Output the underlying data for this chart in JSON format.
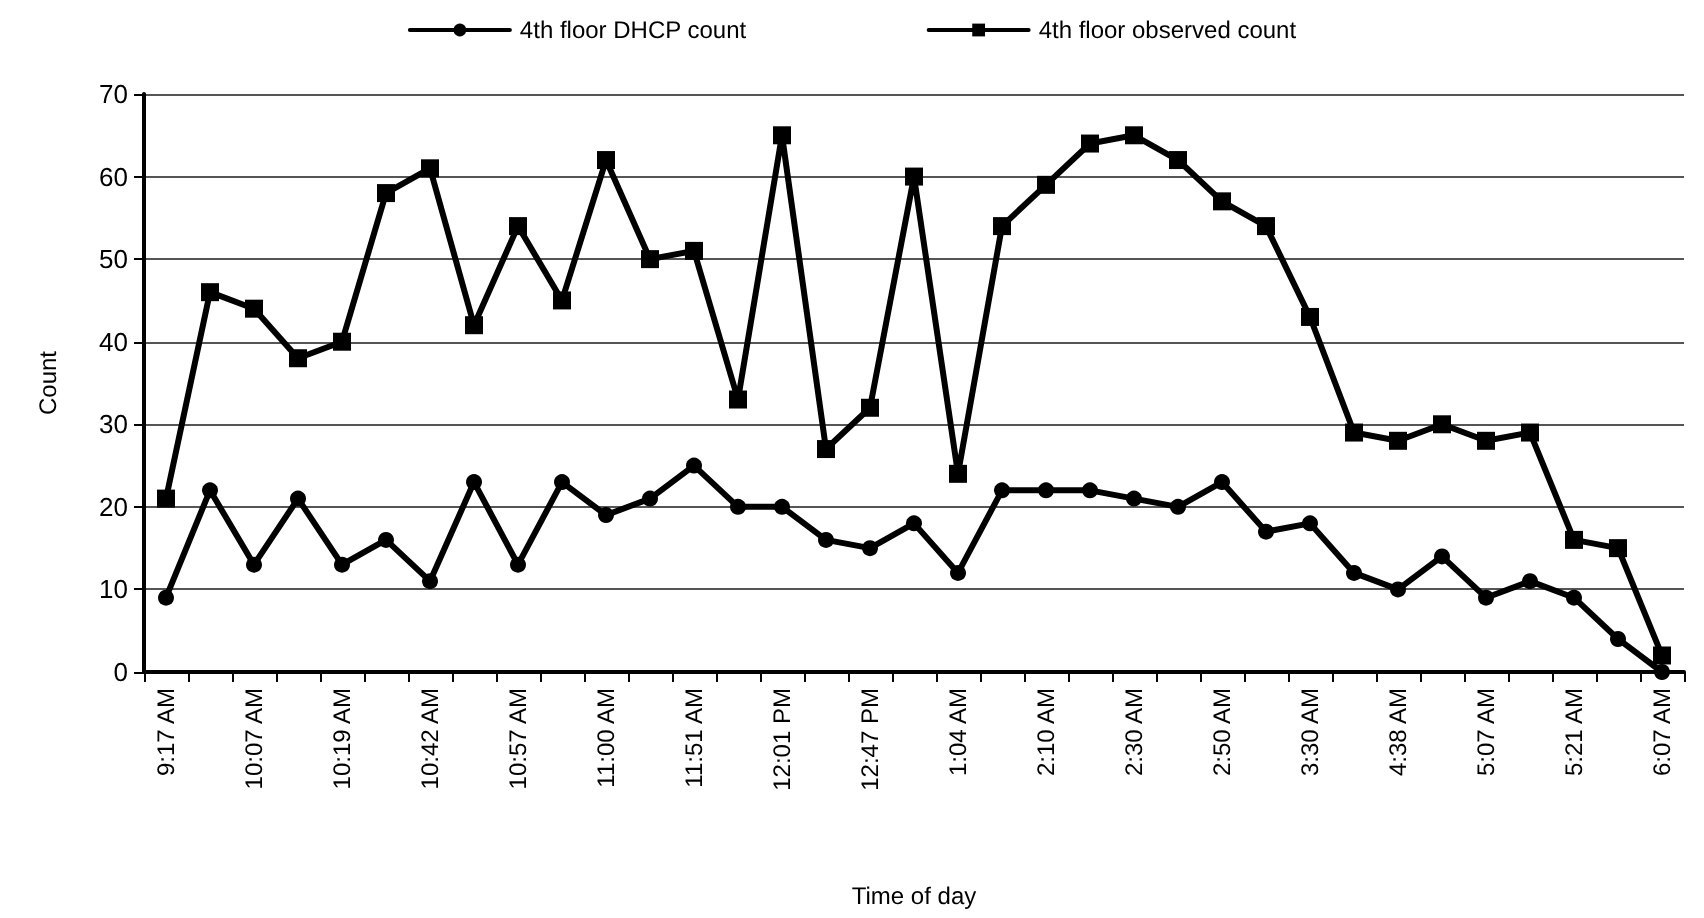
{
  "chart_data": {
    "type": "line",
    "xlabel": "Time of day",
    "ylabel": "Count",
    "categories": [
      "9:17 AM",
      null,
      "10:07 AM",
      null,
      "10:19 AM",
      null,
      "10:42 AM",
      null,
      "10:57 AM",
      null,
      "11:00 AM",
      null,
      "11:51 AM",
      null,
      "12:01 PM",
      null,
      "12:47 PM",
      null,
      "1:04 AM",
      null,
      "2:10 AM",
      null,
      "2:30 AM",
      null,
      "2:50 AM",
      null,
      "3:30 AM",
      null,
      "4:38 AM",
      null,
      "5:07 AM",
      null,
      "5:21 AM",
      null,
      "6:07 AM"
    ],
    "series": [
      {
        "name": "4th floor DHCP count",
        "color": "#000000",
        "marker": "circle",
        "values": [
          9,
          22,
          13,
          21,
          13,
          16,
          11,
          23,
          13,
          23,
          19,
          21,
          25,
          20,
          20,
          16,
          15,
          18,
          12,
          22,
          22,
          22,
          21,
          20,
          23,
          17,
          18,
          12,
          10,
          14,
          9,
          11,
          9,
          4,
          0
        ]
      },
      {
        "name": "4th floor observed count",
        "color": "#000000",
        "marker": "square",
        "values": [
          21,
          46,
          44,
          38,
          40,
          58,
          61,
          42,
          54,
          45,
          62,
          50,
          51,
          33,
          65,
          27,
          32,
          60,
          24,
          54,
          59,
          64,
          65,
          62,
          57,
          54,
          43,
          29,
          28,
          30,
          28,
          29,
          16,
          15,
          2
        ]
      }
    ],
    "ylim": [
      0,
      70
    ],
    "yticks": [
      0,
      10,
      20,
      30,
      40,
      50,
      60,
      70
    ],
    "grid": "y",
    "legend": "top",
    "line_style": "solid"
  }
}
